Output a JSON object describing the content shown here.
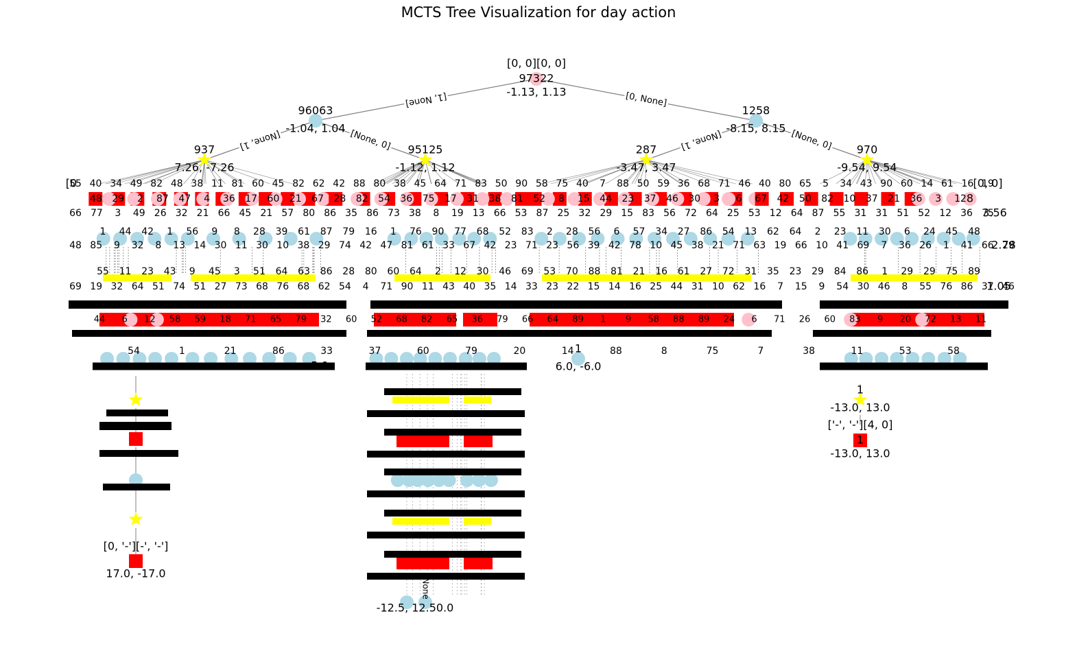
{
  "title": "MCTS Tree Visualization for day action",
  "colors": {
    "chance_node": "#add8e6",
    "decision_node": "#ffff00",
    "state_node": "#ffc0cb",
    "terminal_node": "#ff0000",
    "edge": "#808080",
    "background": "#ffffff"
  },
  "legible_nodes": [
    {
      "id": "root",
      "kind": "state",
      "label": "[0, 0][0, 0]",
      "visits": "97322",
      "value": "-1.13, 1.13"
    },
    {
      "id": "n1",
      "kind": "chance",
      "visits": "96063",
      "value": "-1.04, 1.04"
    },
    {
      "id": "n0",
      "kind": "chance",
      "visits": "1258",
      "value": "-8.15, 8.15"
    },
    {
      "id": "n11",
      "kind": "decision",
      "visits": "937",
      "value": "7.26, -7.26"
    },
    {
      "id": "n10",
      "kind": "decision",
      "visits": "95125",
      "value": "-1.12, 1.12"
    },
    {
      "id": "n01",
      "kind": "decision",
      "visits": "287",
      "value": "-3.47, 3.47"
    },
    {
      "id": "n00",
      "kind": "decision",
      "visits": "970",
      "value": "-9.54, 9.54"
    },
    {
      "id": "leaf_mid",
      "kind": "chance",
      "visits": "1",
      "value": "6.0, -6.0"
    },
    {
      "id": "right_d",
      "kind": "decision",
      "visits": "1",
      "value": "-13.0, 13.0"
    },
    {
      "id": "right_s",
      "kind": "terminal",
      "label": "['-', '-'][4, 0]",
      "visits": "1",
      "value": "-13.0, 13.0"
    }
  ],
  "legible_edges": [
    {
      "from": "root",
      "to": "n1",
      "label": "[1, None]"
    },
    {
      "from": "root",
      "to": "n0",
      "label": "[0, None]"
    },
    {
      "from": "n1",
      "to": "n11",
      "label": "[None, 1]"
    },
    {
      "from": "n1",
      "to": "n10",
      "label": "[None, 0]"
    },
    {
      "from": "n0",
      "to": "n01",
      "label": "[None, 1]"
    },
    {
      "from": "n0",
      "to": "n00",
      "label": "[None, 0]"
    }
  ],
  "overlapping_labels": {
    "row_state_label_left": "[0",
    "row_state_label_right": "[0, 0]",
    "row_state_visits_right": "8",
    "row_state_value_right": "3.56",
    "row_chance_value_right": "2.78",
    "row_decision_value_right": "1.05",
    "row_chance2_value_right": "6.0, -6.0",
    "row_chance2_value_far": "5.0",
    "deep_left_value": "17.0, -17.0",
    "deep_left_label": "[0, '-'][-', '-']",
    "deep_mid_value": "-12.5, 12.50.0",
    "deep_mid_edge": "None"
  }
}
